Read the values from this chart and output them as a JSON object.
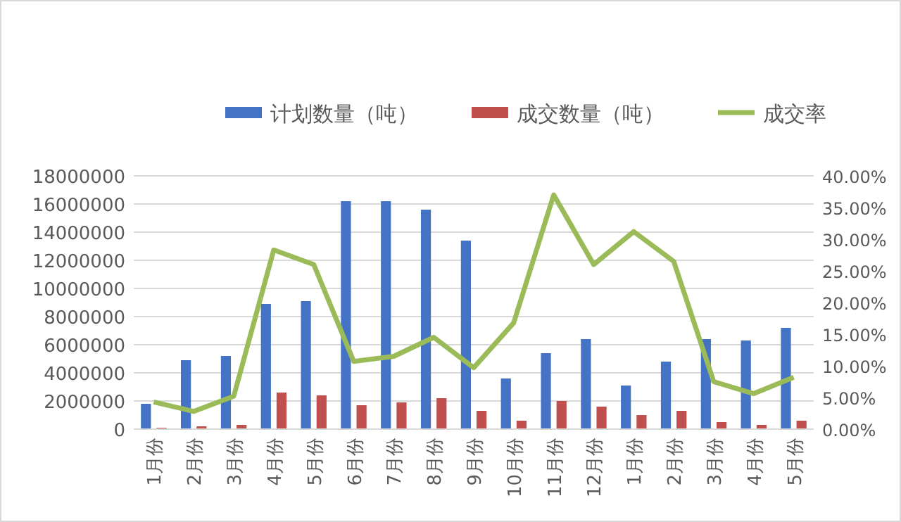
{
  "chart_data": {
    "type": "bar",
    "categories": [
      "1月份",
      "2月份",
      "3月份",
      "4月份",
      "5月份",
      "6月份",
      "7月份",
      "8月份",
      "9月份",
      "10月份",
      "11月份",
      "12月份",
      "1月份",
      "2月份",
      "3月份",
      "4月份",
      "5月份"
    ],
    "series": [
      {
        "name": "计划数量（吨）",
        "color": "#4472c4",
        "values": [
          1800000,
          4900000,
          5200000,
          8900000,
          9100000,
          16200000,
          16200000,
          15600000,
          13400000,
          3600000,
          5400000,
          6400000,
          3100000,
          4800000,
          6400000,
          6300000,
          7200000
        ]
      },
      {
        "name": "成交数量（吨）",
        "color": "#c0504d",
        "values": [
          100000,
          200000,
          300000,
          2600000,
          2400000,
          1700000,
          1900000,
          2200000,
          1300000,
          600000,
          2000000,
          1600000,
          1000000,
          1300000,
          500000,
          300000,
          600000
        ]
      },
      {
        "name": "成交率",
        "type": "line",
        "axis": "y2",
        "color": "#9bbb59",
        "values": [
          4.3,
          2.8,
          5.2,
          28.3,
          26,
          10.7,
          11.5,
          14.5,
          9.7,
          16.8,
          37,
          26,
          31.2,
          26.5,
          7.5,
          5.6,
          8.2
        ]
      }
    ],
    "ylim": [
      0,
      18000000
    ],
    "yticks": [
      0,
      2000000,
      4000000,
      6000000,
      8000000,
      10000000,
      12000000,
      14000000,
      16000000,
      18000000
    ],
    "y2lim": [
      0,
      40
    ],
    "y2ticks": [
      {
        "value": 0,
        "label": "0.00%"
      },
      {
        "value": 5,
        "label": "5.00%"
      },
      {
        "value": 10,
        "label": "10.00%"
      },
      {
        "value": 15,
        "label": "15.00%"
      },
      {
        "value": 20,
        "label": "20.00%"
      },
      {
        "value": 25,
        "label": "25.00%"
      },
      {
        "value": 30,
        "label": "30.00%"
      },
      {
        "value": 35,
        "label": "35.00%"
      },
      {
        "value": 40,
        "label": "40.00%"
      }
    ],
    "grid": "y",
    "legend": "top",
    "marker": "none"
  }
}
